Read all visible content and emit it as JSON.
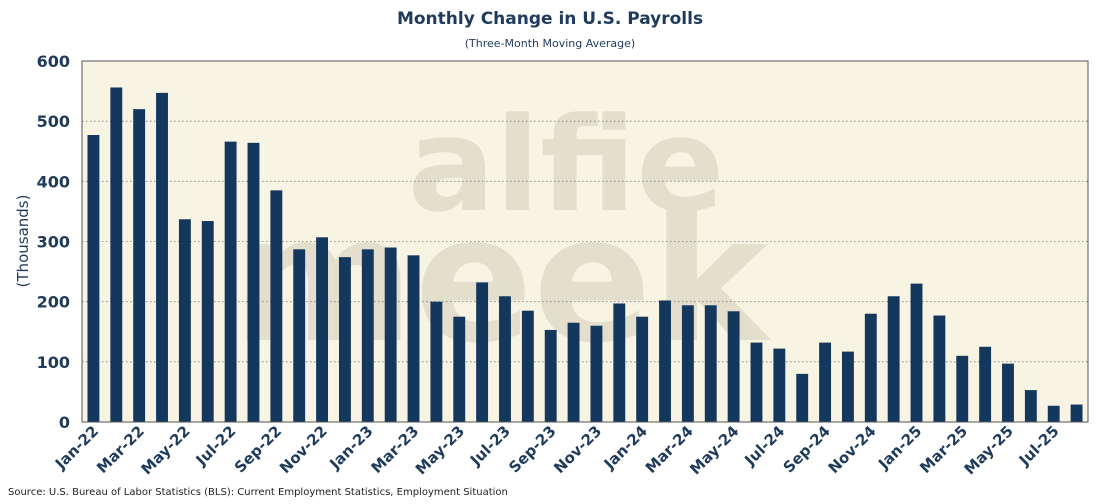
{
  "colors": {
    "bar": "#14375e",
    "text": "#1f3b5c",
    "plot_bg": "#f8f4e4",
    "grid": "#7a7a7a",
    "watermark": "#e4dfcd"
  },
  "watermark": {
    "line1": "alfie",
    "line2": "meek"
  },
  "source": "Source: U.S. Bureau of Labor Statistics (BLS): Current Employment Statistics, Employment Situation",
  "chart_data": {
    "type": "bar",
    "title": "Monthly Change in U.S. Payrolls",
    "subtitle": "(Three-Month Moving Average)",
    "xlabel": "",
    "ylabel": "(Thousands)",
    "ylim": [
      0,
      600
    ],
    "yticks": [
      0,
      100,
      200,
      300,
      400,
      500,
      600
    ],
    "grid": "horizontal dotted",
    "legend": "none",
    "categories": [
      "Jan-22",
      "Feb-22",
      "Mar-22",
      "Apr-22",
      "May-22",
      "Jun-22",
      "Jul-22",
      "Aug-22",
      "Sep-22",
      "Oct-22",
      "Nov-22",
      "Dec-22",
      "Jan-23",
      "Feb-23",
      "Mar-23",
      "Apr-23",
      "May-23",
      "Jun-23",
      "Jul-23",
      "Aug-23",
      "Sep-23",
      "Oct-23",
      "Nov-23",
      "Dec-23",
      "Jan-24",
      "Feb-24",
      "Mar-24",
      "Apr-24",
      "May-24",
      "Jun-24",
      "Jul-24",
      "Aug-24",
      "Sep-24",
      "Oct-24",
      "Nov-24",
      "Dec-24",
      "Jan-25",
      "Feb-25",
      "Mar-25",
      "Apr-25",
      "May-25",
      "Jun-25",
      "Jul-25",
      "Aug-25"
    ],
    "tick_labels": [
      "Jan-22",
      "Mar-22",
      "May-22",
      "Jul-22",
      "Sep-22",
      "Nov-22",
      "Jan-23",
      "Mar-23",
      "May-23",
      "Jul-23",
      "Sep-23",
      "Nov-23",
      "Jan-24",
      "Mar-24",
      "May-24",
      "Jul-24",
      "Sep-24",
      "Nov-24",
      "Jan-25",
      "Mar-25",
      "May-25",
      "Jul-25"
    ],
    "values": [
      477,
      556,
      520,
      547,
      337,
      334,
      466,
      464,
      385,
      287,
      307,
      274,
      287,
      290,
      277,
      200,
      175,
      232,
      209,
      185,
      153,
      165,
      160,
      197,
      175,
      202,
      194,
      194,
      184,
      132,
      122,
      80,
      132,
      117,
      180,
      209,
      230,
      177,
      110,
      125,
      97,
      53,
      27,
      29
    ]
  }
}
